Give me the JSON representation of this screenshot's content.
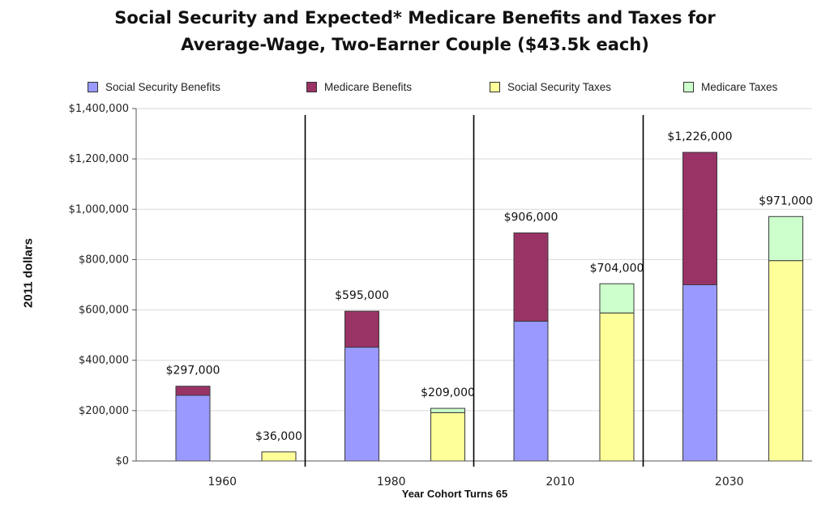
{
  "chart_data": {
    "type": "bar",
    "stacked": true,
    "title_lines": [
      "Social Security and Expected* Medicare Benefits and Taxes for",
      "Average-Wage, Two-Earner Couple ($43.5k each)"
    ],
    "xlabel": "Year Cohort Turns 65",
    "ylabel": "2011 dollars",
    "ylim": [
      0,
      1400000
    ],
    "yticks": [
      0,
      200000,
      400000,
      600000,
      800000,
      1000000,
      1200000,
      1400000
    ],
    "ytick_labels": [
      "$0",
      "$200,000",
      "$400,000",
      "$600,000",
      "$800,000",
      "$1,000,000",
      "$1,200,000",
      "$1,400,000"
    ],
    "grid": true,
    "legend_position": "top",
    "categories": [
      "1960",
      "1980",
      "2010",
      "2030"
    ],
    "series": [
      {
        "name": "Social Security Benefits",
        "color": "#9999ff",
        "group": "benefits",
        "values": [
          261000,
          452000,
          555000,
          700000
        ]
      },
      {
        "name": "Medicare Benefits",
        "color": "#993366",
        "group": "benefits",
        "values": [
          36000,
          143000,
          351000,
          526000
        ]
      },
      {
        "name": "Social Security Taxes",
        "color": "#ffff99",
        "group": "taxes",
        "values": [
          36000,
          192000,
          588000,
          796000
        ]
      },
      {
        "name": "Medicare Taxes",
        "color": "#ccffcc",
        "group": "taxes",
        "values": [
          0,
          17000,
          116000,
          175000
        ]
      }
    ],
    "totals": {
      "benefits": [
        297000,
        595000,
        906000,
        1226000
      ],
      "taxes": [
        36000,
        209000,
        704000,
        971000
      ]
    },
    "total_labels": {
      "benefits": [
        "$297,000",
        "$595,000",
        "$906,000",
        "$1,226,000"
      ],
      "taxes": [
        "$36,000",
        "$209,000",
        "$704,000",
        "$971,000"
      ]
    }
  }
}
